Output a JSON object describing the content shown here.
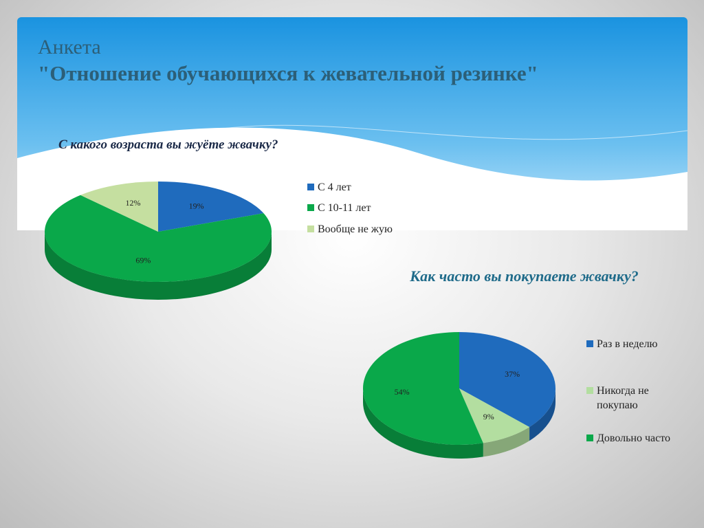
{
  "slide_title": [
    "Анкета",
    "\"Отношение обучающихся к жевательной резинке\""
  ],
  "chart_data": [
    {
      "type": "pie",
      "title": "С какого возраста вы жуёте жвачку?",
      "categories": [
        "С 4 лет",
        "С 10-11 лет",
        "Вообще не жую"
      ],
      "values": [
        19,
        69,
        12
      ],
      "value_labels": [
        "19%",
        "69%",
        "12%"
      ],
      "colors": [
        "#1f6bbd",
        "#0aa84a",
        "#c5dfa0"
      ],
      "legend": "right"
    },
    {
      "type": "pie",
      "title": "Как часто вы покупаете жвачку?",
      "categories": [
        "Раз в неделю",
        "Никогда не покупаю",
        "Довольно часто"
      ],
      "values": [
        37,
        9,
        54
      ],
      "value_labels": [
        "37%",
        "9%",
        "54%"
      ],
      "colors": [
        "#1f6bbd",
        "#b3dea0",
        "#0aa84a"
      ],
      "legend": "right"
    }
  ]
}
